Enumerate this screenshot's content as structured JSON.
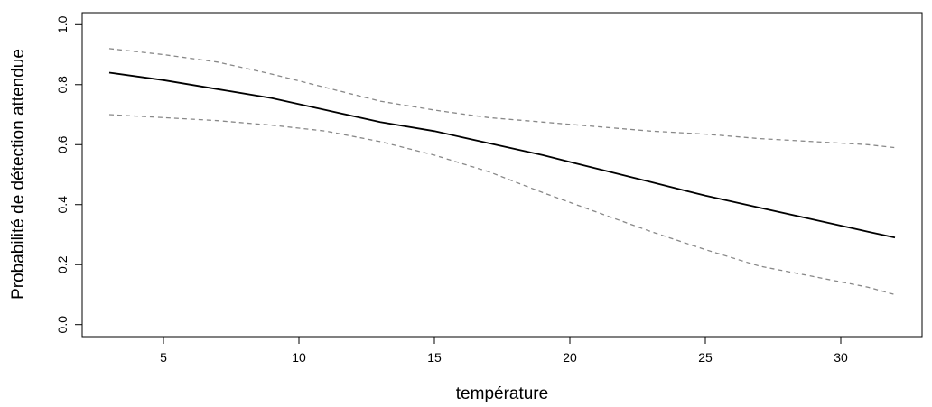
{
  "chart_data": {
    "type": "line",
    "title": "",
    "xlabel": "température",
    "ylabel": "Probabilité de détection attendue",
    "xlim": [
      2,
      33
    ],
    "ylim": [
      -0.04,
      1.04
    ],
    "x_ticks": [
      5,
      10,
      15,
      20,
      25,
      30
    ],
    "y_ticks": [
      0.0,
      0.2,
      0.4,
      0.6,
      0.8,
      1.0
    ],
    "x_tick_labels": [
      "5",
      "10",
      "15",
      "20",
      "25",
      "30"
    ],
    "y_tick_labels": [
      "0.0",
      "0.2",
      "0.4",
      "0.6",
      "0.8",
      "1.0"
    ],
    "grid": false,
    "series": [
      {
        "role": "estimate",
        "style": "solid",
        "color": "#000000",
        "points": [
          [
            3,
            0.84
          ],
          [
            5,
            0.815
          ],
          [
            7,
            0.785
          ],
          [
            9,
            0.755
          ],
          [
            11,
            0.715
          ],
          [
            13,
            0.675
          ],
          [
            15,
            0.645
          ],
          [
            17,
            0.605
          ],
          [
            19,
            0.565
          ],
          [
            21,
            0.52
          ],
          [
            23,
            0.475
          ],
          [
            25,
            0.43
          ],
          [
            27,
            0.39
          ],
          [
            29,
            0.35
          ],
          [
            31,
            0.31
          ],
          [
            32,
            0.29
          ]
        ]
      },
      {
        "role": "upper",
        "style": "dashed",
        "color": "#888888",
        "points": [
          [
            3,
            0.92
          ],
          [
            5,
            0.9
          ],
          [
            7,
            0.875
          ],
          [
            9,
            0.835
          ],
          [
            11,
            0.79
          ],
          [
            13,
            0.745
          ],
          [
            15,
            0.715
          ],
          [
            17,
            0.69
          ],
          [
            19,
            0.675
          ],
          [
            21,
            0.66
          ],
          [
            23,
            0.645
          ],
          [
            25,
            0.635
          ],
          [
            27,
            0.62
          ],
          [
            29,
            0.61
          ],
          [
            31,
            0.6
          ],
          [
            32,
            0.59
          ]
        ]
      },
      {
        "role": "lower",
        "style": "dashed",
        "color": "#888888",
        "points": [
          [
            3,
            0.7
          ],
          [
            5,
            0.69
          ],
          [
            7,
            0.68
          ],
          [
            9,
            0.665
          ],
          [
            11,
            0.645
          ],
          [
            13,
            0.61
          ],
          [
            15,
            0.565
          ],
          [
            17,
            0.51
          ],
          [
            19,
            0.44
          ],
          [
            21,
            0.375
          ],
          [
            23,
            0.31
          ],
          [
            25,
            0.25
          ],
          [
            27,
            0.195
          ],
          [
            29,
            0.16
          ],
          [
            31,
            0.125
          ],
          [
            32,
            0.1
          ]
        ]
      }
    ]
  }
}
